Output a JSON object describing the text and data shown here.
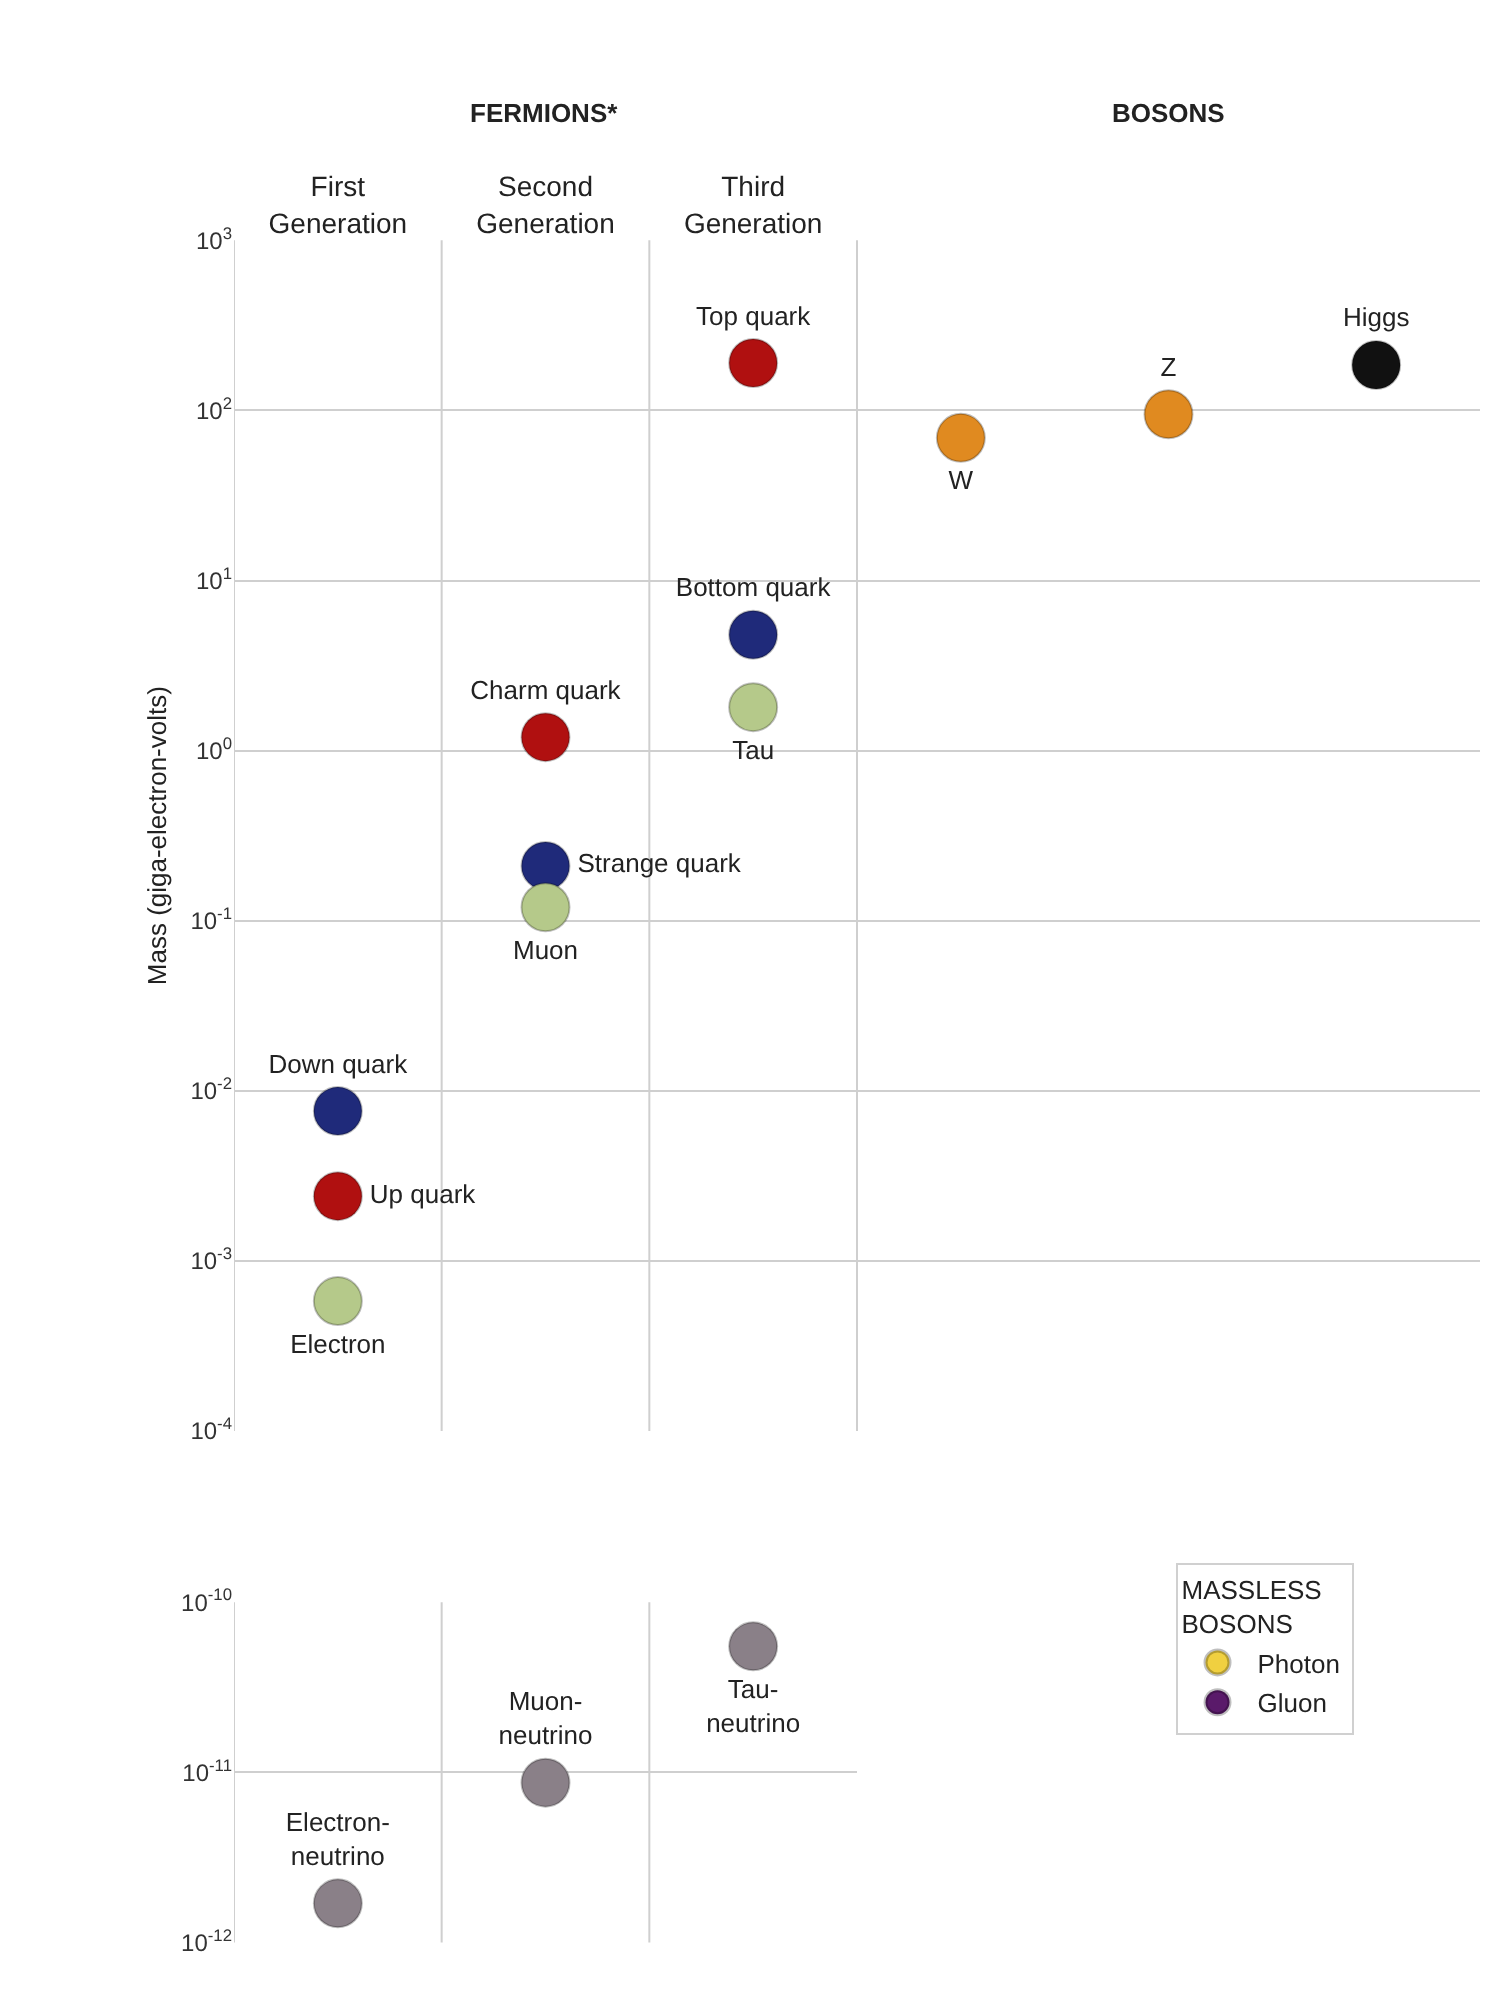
{
  "chart_data": [
    {
      "type": "scatter",
      "ylabel": "Mass (giga-electron-volts)",
      "log": "y",
      "grid": true,
      "legend": false,
      "marker": "circle",
      "annotations": [
        "FERMIONS*",
        "BOSONS"
      ],
      "categories": [
        "First Generation",
        "Second Generation",
        "Third Generation",
        null,
        null,
        null
      ],
      "ylim": [
        0.0001,
        1000
      ],
      "yticks": [
        {
          "value": 0.0001,
          "label": "10$^{-4}$"
        },
        {
          "value": 0.001,
          "label": "10$^{-3}$"
        },
        {
          "value": 0.01,
          "label": "10$^{-2}$"
        },
        {
          "value": 0.1,
          "label": "10$^{-1}$"
        },
        {
          "value": 1,
          "label": "10$^{0}$"
        },
        {
          "value": 10,
          "label": "10$^{1}$"
        },
        {
          "value": 100,
          "label": "10$^{2}$"
        },
        {
          "value": 1000,
          "label": "10$^{3}$"
        }
      ],
      "series": [
        {
          "name": "Down quark",
          "color": "#1f2a7a",
          "values": [
            0.0076,
            null,
            null,
            null,
            null,
            null
          ]
        },
        {
          "name": "Up quark",
          "color": "#b01010",
          "values": [
            0.0024,
            null,
            null,
            null,
            null,
            null
          ]
        },
        {
          "name": "Electron",
          "color": "#b5c98a",
          "values": [
            0.00058,
            null,
            null,
            null,
            null,
            null
          ]
        },
        {
          "name": "Charm quark",
          "color": "#b01010",
          "values": [
            null,
            1.2,
            null,
            null,
            null,
            null
          ]
        },
        {
          "name": "Strange quark",
          "color": "#1f2a7a",
          "values": [
            null,
            0.21,
            null,
            null,
            null,
            null
          ]
        },
        {
          "name": "Muon",
          "color": "#b5c98a",
          "values": [
            null,
            0.12,
            null,
            null,
            null,
            null
          ]
        },
        {
          "name": "Top quark",
          "color": "#b01010",
          "values": [
            null,
            null,
            190,
            null,
            null,
            null
          ]
        },
        {
          "name": "Bottom quark",
          "color": "#1f2a7a",
          "values": [
            null,
            null,
            4.8,
            null,
            null,
            null
          ]
        },
        {
          "name": "Tau",
          "color": "#b5c98a",
          "values": [
            null,
            null,
            1.8,
            null,
            null,
            null
          ]
        },
        {
          "name": "W",
          "color": "#e08a20",
          "values": [
            null,
            null,
            null,
            69,
            null,
            null
          ]
        },
        {
          "name": "Z",
          "color": "#e08a20",
          "values": [
            null,
            null,
            null,
            null,
            95,
            null
          ]
        },
        {
          "name": "Higgs",
          "color": "#111111",
          "values": [
            null,
            null,
            null,
            null,
            null,
            185
          ]
        }
      ]
    },
    {
      "type": "scatter",
      "log": "y",
      "grid": true,
      "legend": "right",
      "legend_title": "MASSLESS BOSONS",
      "marker": "circle",
      "tick_labels": "y",
      "categories": [
        null,
        null,
        null
      ],
      "ylim": [
        1e-12,
        1e-10
      ],
      "yticks": [
        {
          "value": 1e-12,
          "label": "10$^{-12}$"
        },
        {
          "value": 1e-11,
          "label": "10$^{-11}$"
        },
        {
          "value": 1e-10,
          "label": "10$^{-10}$"
        }
      ],
      "series": [
        {
          "name": "Electron-neutrino",
          "color": "#8a8088",
          "values": [
            1.7e-12,
            null,
            null
          ]
        },
        {
          "name": "Muon-neutrino",
          "color": "#8a8088",
          "values": [
            null,
            8.7e-12,
            null
          ]
        },
        {
          "name": "Tau-neutrino",
          "color": "#8a8088",
          "values": [
            null,
            null,
            5.5e-11
          ]
        },
        {
          "name": "Photon",
          "color": "#f0d040",
          "values": [
            null,
            null,
            null
          ]
        },
        {
          "name": "Gluon",
          "color": "#5a1a6a",
          "values": [
            null,
            null,
            null
          ]
        }
      ]
    }
  ]
}
